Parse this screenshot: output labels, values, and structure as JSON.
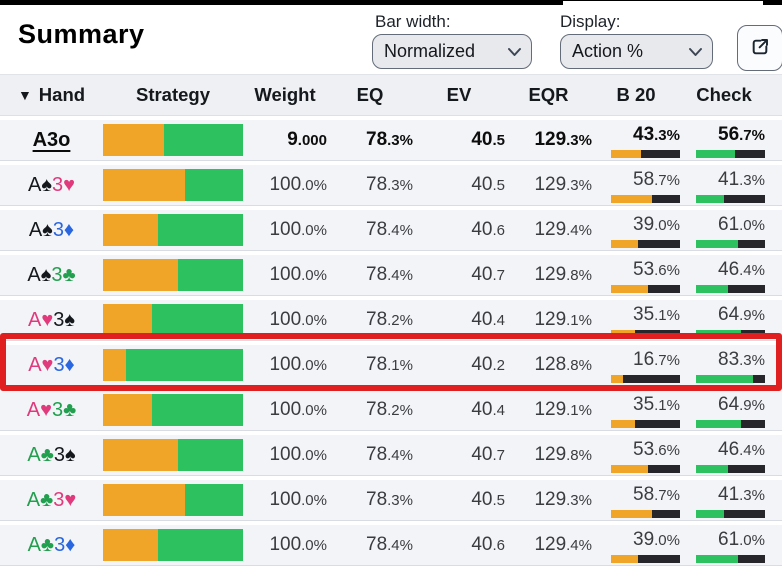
{
  "title": "Summary",
  "toolbar": {
    "bar_width_label": "Bar width:",
    "bar_width_value": "Normalized",
    "display_label": "Display:",
    "display_value": "Action %",
    "export_icon": "open-in-new",
    "dropdown_icon": "chevron-down"
  },
  "table": {
    "sort_icon": "▼",
    "columns": [
      "Hand",
      "Strategy",
      "Weight",
      "EQ",
      "EV",
      "EQR",
      "B 20",
      "Check"
    ],
    "colors": {
      "bet": "#F0A428",
      "check": "#2DC25F",
      "bar_bg": "#26262B",
      "highlight": "#E02020",
      "suit_spade": "#15191E",
      "suit_heart": "#E03A7D",
      "suit_diamond": "#2A66DF",
      "suit_club": "#22A04F"
    },
    "rows": [
      {
        "hand": [
          {
            "text": "A3o",
            "suit": "none"
          }
        ],
        "summary": true,
        "highlight": false,
        "weight": "9.000",
        "eq": "78.3%",
        "ev": "40.5",
        "eqr": "129.3%",
        "b20": "43.3%",
        "check": "56.7%"
      },
      {
        "hand": [
          {
            "text": "A♠",
            "suit": "spade"
          },
          {
            "text": "3♥",
            "suit": "heart"
          }
        ],
        "summary": false,
        "highlight": false,
        "weight": "100.0%",
        "eq": "78.3%",
        "ev": "40.5",
        "eqr": "129.3%",
        "b20": "58.7%",
        "check": "41.3%"
      },
      {
        "hand": [
          {
            "text": "A♠",
            "suit": "spade"
          },
          {
            "text": "3♦",
            "suit": "diamond"
          }
        ],
        "summary": false,
        "highlight": false,
        "weight": "100.0%",
        "eq": "78.4%",
        "ev": "40.6",
        "eqr": "129.4%",
        "b20": "39.0%",
        "check": "61.0%"
      },
      {
        "hand": [
          {
            "text": "A♠",
            "suit": "spade"
          },
          {
            "text": "3♣",
            "suit": "club"
          }
        ],
        "summary": false,
        "highlight": false,
        "weight": "100.0%",
        "eq": "78.4%",
        "ev": "40.7",
        "eqr": "129.8%",
        "b20": "53.6%",
        "check": "46.4%"
      },
      {
        "hand": [
          {
            "text": "A♥",
            "suit": "heart"
          },
          {
            "text": "3♠",
            "suit": "spade"
          }
        ],
        "summary": false,
        "highlight": false,
        "weight": "100.0%",
        "eq": "78.2%",
        "ev": "40.4",
        "eqr": "129.1%",
        "b20": "35.1%",
        "check": "64.9%"
      },
      {
        "hand": [
          {
            "text": "A♥",
            "suit": "heart"
          },
          {
            "text": "3♦",
            "suit": "diamond"
          }
        ],
        "summary": false,
        "highlight": true,
        "weight": "100.0%",
        "eq": "78.1%",
        "ev": "40.2",
        "eqr": "128.8%",
        "b20": "16.7%",
        "check": "83.3%"
      },
      {
        "hand": [
          {
            "text": "A♥",
            "suit": "heart"
          },
          {
            "text": "3♣",
            "suit": "club"
          }
        ],
        "summary": false,
        "highlight": false,
        "weight": "100.0%",
        "eq": "78.2%",
        "ev": "40.4",
        "eqr": "129.1%",
        "b20": "35.1%",
        "check": "64.9%"
      },
      {
        "hand": [
          {
            "text": "A♣",
            "suit": "club"
          },
          {
            "text": "3♠",
            "suit": "spade"
          }
        ],
        "summary": false,
        "highlight": false,
        "weight": "100.0%",
        "eq": "78.4%",
        "ev": "40.7",
        "eqr": "129.8%",
        "b20": "53.6%",
        "check": "46.4%"
      },
      {
        "hand": [
          {
            "text": "A♣",
            "suit": "club"
          },
          {
            "text": "3♥",
            "suit": "heart"
          }
        ],
        "summary": false,
        "highlight": false,
        "weight": "100.0%",
        "eq": "78.3%",
        "ev": "40.5",
        "eqr": "129.3%",
        "b20": "58.7%",
        "check": "41.3%"
      },
      {
        "hand": [
          {
            "text": "A♣",
            "suit": "club"
          },
          {
            "text": "3♦",
            "suit": "diamond"
          }
        ],
        "summary": false,
        "highlight": false,
        "weight": "100.0%",
        "eq": "78.4%",
        "ev": "40.6",
        "eqr": "129.4%",
        "b20": "39.0%",
        "check": "61.0%"
      }
    ]
  }
}
